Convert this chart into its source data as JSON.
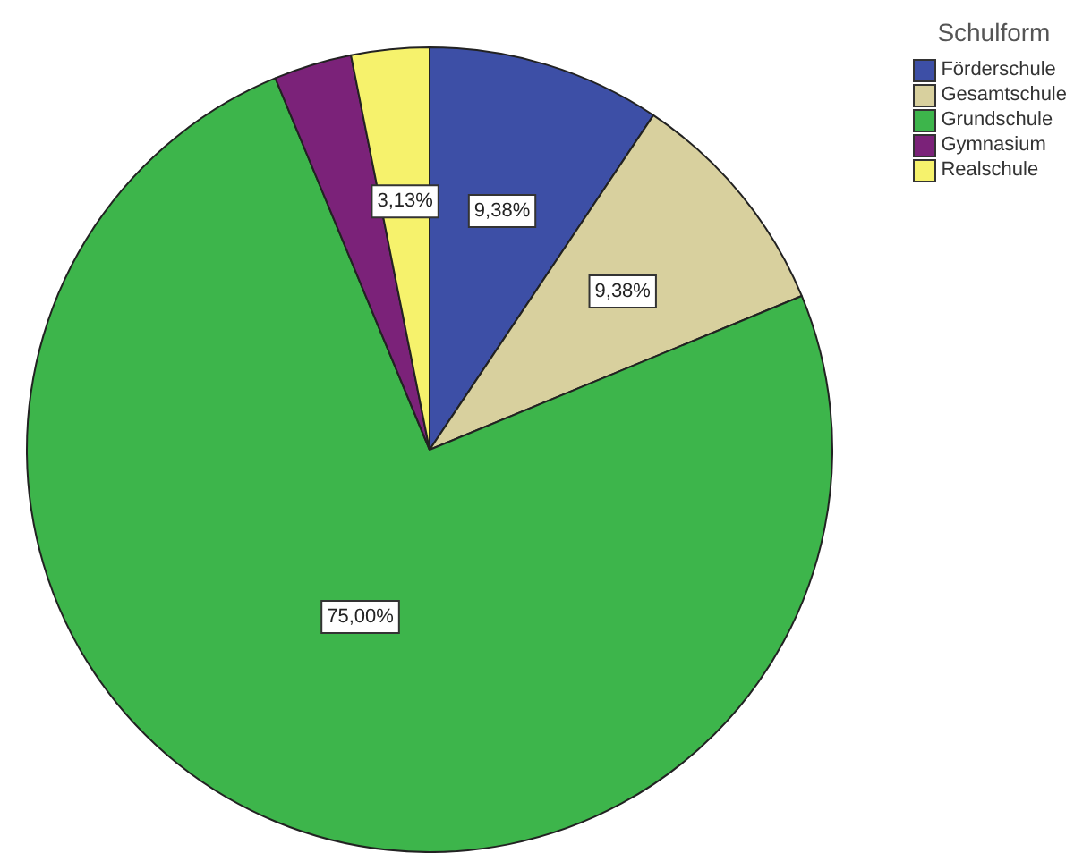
{
  "chart_data": {
    "type": "pie",
    "legend_title": "Schulform",
    "legend": "top right",
    "categories": [
      "Förderschule",
      "Gesamtschule",
      "Grundschule",
      "Gymnasium",
      "Realschule"
    ],
    "values": [
      9.38,
      9.38,
      75.0,
      3.13,
      3.13
    ],
    "colors": [
      "#3d4fa6",
      "#d8d09e",
      "#3db54b",
      "#7b2279",
      "#f6f26c"
    ],
    "value_labels": [
      "9,38%",
      "9,38%",
      "75,00%",
      null,
      "3,13%"
    ]
  }
}
